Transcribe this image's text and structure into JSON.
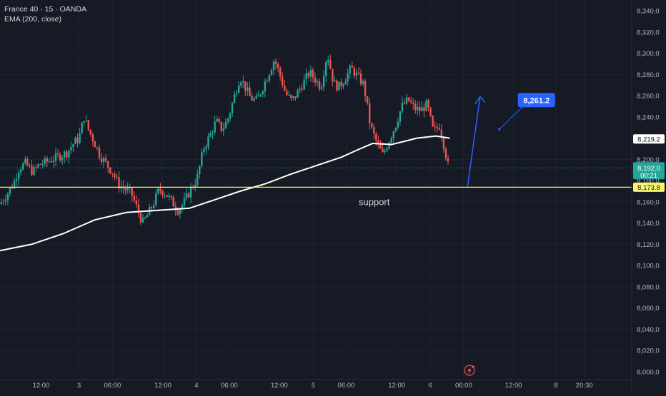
{
  "legend": {
    "symbol_line": "France 40 · 15 · OANDA",
    "indicator_line": "EMA (200, close)"
  },
  "chart_data": {
    "type": "candlestick",
    "instrument": "France 40",
    "interval": "15",
    "source": "OANDA",
    "ylim": [
      8000,
      8345
    ],
    "y_ticks": [
      "8,340,0",
      "8,320,0",
      "8,300,0",
      "8,280,0",
      "8,260,0",
      "8,240,0",
      "8,220,0",
      "8,200,0",
      "8,180,0",
      "8,160,0",
      "8,140,0",
      "8,120,0",
      "8,100,0",
      "8,080,0",
      "8,060,0",
      "8,040,0",
      "8,020,0",
      "8,000,0"
    ],
    "y_tick_values": [
      8340,
      8320,
      8300,
      8280,
      8260,
      8240,
      8220,
      8200,
      8180,
      8160,
      8140,
      8120,
      8100,
      8080,
      8060,
      8040,
      8020,
      8000
    ],
    "x_ticks": [
      {
        "label": "12:00",
        "t": 0.065
      },
      {
        "label": "3",
        "t": 0.125
      },
      {
        "label": "06:00",
        "t": 0.178
      },
      {
        "label": "12:00",
        "t": 0.258
      },
      {
        "label": "4",
        "t": 0.311
      },
      {
        "label": "06:00",
        "t": 0.363
      },
      {
        "label": "12:00",
        "t": 0.442
      },
      {
        "label": "5",
        "t": 0.496
      },
      {
        "label": "06:00",
        "t": 0.548
      },
      {
        "label": "12:00",
        "t": 0.628
      },
      {
        "label": "6",
        "t": 0.681
      },
      {
        "label": "06:00",
        "t": 0.734
      },
      {
        "label": "12:00",
        "t": 0.813
      },
      {
        "label": "8",
        "t": 0.88
      },
      {
        "label": "20:30",
        "t": 0.925
      }
    ],
    "price_path": [
      [
        0.0,
        8158
      ],
      [
        0.012,
        8168
      ],
      [
        0.022,
        8178
      ],
      [
        0.03,
        8192
      ],
      [
        0.04,
        8196
      ],
      [
        0.052,
        8188
      ],
      [
        0.062,
        8195
      ],
      [
        0.075,
        8198
      ],
      [
        0.09,
        8202
      ],
      [
        0.105,
        8206
      ],
      [
        0.115,
        8214
      ],
      [
        0.125,
        8220
      ],
      [
        0.133,
        8240
      ],
      [
        0.14,
        8228
      ],
      [
        0.148,
        8218
      ],
      [
        0.158,
        8204
      ],
      [
        0.168,
        8196
      ],
      [
        0.178,
        8188
      ],
      [
        0.188,
        8176
      ],
      [
        0.198,
        8172
      ],
      [
        0.208,
        8168
      ],
      [
        0.218,
        8152
      ],
      [
        0.226,
        8140
      ],
      [
        0.234,
        8148
      ],
      [
        0.244,
        8160
      ],
      [
        0.252,
        8172
      ],
      [
        0.262,
        8168
      ],
      [
        0.272,
        8160
      ],
      [
        0.282,
        8152
      ],
      [
        0.292,
        8160
      ],
      [
        0.302,
        8172
      ],
      [
        0.312,
        8182
      ],
      [
        0.322,
        8210
      ],
      [
        0.332,
        8222
      ],
      [
        0.342,
        8236
      ],
      [
        0.352,
        8228
      ],
      [
        0.362,
        8240
      ],
      [
        0.372,
        8262
      ],
      [
        0.38,
        8278
      ],
      [
        0.388,
        8268
      ],
      [
        0.396,
        8258
      ],
      [
        0.406,
        8255
      ],
      [
        0.416,
        8268
      ],
      [
        0.426,
        8282
      ],
      [
        0.434,
        8294
      ],
      [
        0.442,
        8282
      ],
      [
        0.452,
        8262
      ],
      [
        0.462,
        8255
      ],
      [
        0.47,
        8262
      ],
      [
        0.48,
        8272
      ],
      [
        0.49,
        8282
      ],
      [
        0.498,
        8276
      ],
      [
        0.508,
        8268
      ],
      [
        0.518,
        8300
      ],
      [
        0.528,
        8272
      ],
      [
        0.536,
        8268
      ],
      [
        0.546,
        8276
      ],
      [
        0.556,
        8286
      ],
      [
        0.566,
        8278
      ],
      [
        0.576,
        8270
      ],
      [
        0.586,
        8232
      ],
      [
        0.596,
        8216
      ],
      [
        0.606,
        8204
      ],
      [
        0.616,
        8218
      ],
      [
        0.626,
        8232
      ],
      [
        0.636,
        8250
      ],
      [
        0.646,
        8256
      ],
      [
        0.656,
        8248
      ],
      [
        0.666,
        8246
      ],
      [
        0.676,
        8252
      ],
      [
        0.686,
        8226
      ],
      [
        0.696,
        8232
      ],
      [
        0.704,
        8210
      ],
      [
        0.71,
        8192
      ]
    ],
    "ema": {
      "name": "EMA (200, close)",
      "value": 8219.2,
      "points": [
        [
          0.0,
          8114
        ],
        [
          0.05,
          8120
        ],
        [
          0.1,
          8130
        ],
        [
          0.15,
          8143
        ],
        [
          0.2,
          8150
        ],
        [
          0.25,
          8152
        ],
        [
          0.3,
          8154
        ],
        [
          0.34,
          8162
        ],
        [
          0.38,
          8170
        ],
        [
          0.42,
          8177
        ],
        [
          0.46,
          8186
        ],
        [
          0.5,
          8194
        ],
        [
          0.54,
          8202
        ],
        [
          0.57,
          8210
        ],
        [
          0.59,
          8215
        ],
        [
          0.62,
          8214
        ],
        [
          0.64,
          8217
        ],
        [
          0.66,
          8220
        ],
        [
          0.69,
          8222
        ],
        [
          0.712,
          8220
        ]
      ]
    },
    "current_price": {
      "value": 8192.0,
      "label": "8,192.0",
      "countdown": "00:21"
    },
    "ema_price_label": "8,219.2",
    "support": {
      "value": 8173.8,
      "label": "8,173.8",
      "text": "support",
      "color": "#f7f76b"
    },
    "arrow": {
      "from": [
        0.74,
        8174
      ],
      "to": [
        0.76,
        8259
      ],
      "color": "#2962ff"
    },
    "target": {
      "label": "8,261.2",
      "value": 8261.2,
      "t": 0.83,
      "color": "#2962ff"
    },
    "colors": {
      "up": "#26a69a",
      "down": "#ef5350",
      "ema": "#ffffff",
      "background": "#161a25",
      "grid": "#1f2330",
      "axis_text": "#b2b5be"
    }
  }
}
